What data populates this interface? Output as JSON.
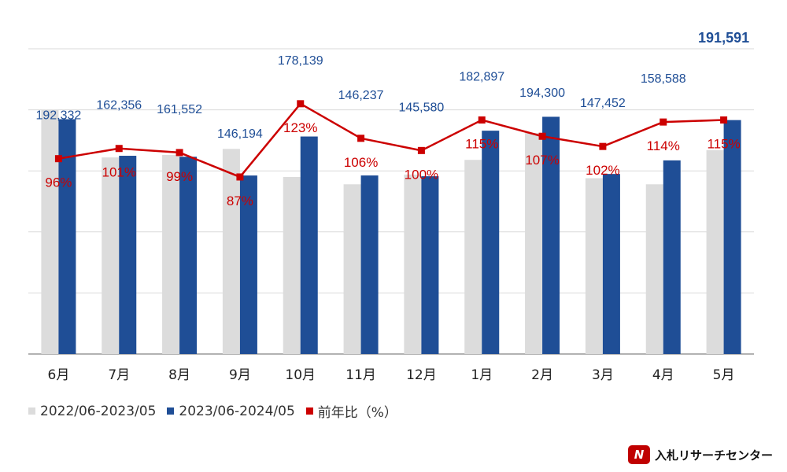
{
  "chart_data": {
    "type": "bar",
    "categories": [
      "6月",
      "7月",
      "8月",
      "9月",
      "10月",
      "11月",
      "12月",
      "1月",
      "2月",
      "3月",
      "4月",
      "5月"
    ],
    "series": [
      {
        "name": "2022/06-2023/05",
        "kind": "bar",
        "color": "#dcdcdc",
        "values": [
          200000,
          161000,
          163000,
          168000,
          145000,
          139000,
          147000,
          159000,
          181000,
          144000,
          139000,
          167000
        ]
      },
      {
        "name": "2023/06-2024/05",
        "kind": "bar",
        "color": "#1f4e96",
        "values": [
          192332,
          162356,
          161552,
          146194,
          178139,
          146237,
          145580,
          182897,
          194300,
          147452,
          158588,
          191591
        ],
        "labels": [
          "192,332",
          "162,356",
          "161,552",
          "146,194",
          "178,139",
          "146,237",
          "145,580",
          "182,897",
          "194,300",
          "147,452",
          "158,588",
          "191,591"
        ]
      },
      {
        "name": "前年比（%）",
        "kind": "line",
        "color": "#cc0000",
        "values": [
          96,
          101,
          99,
          87,
          123,
          106,
          100,
          115,
          107,
          102,
          114,
          115
        ],
        "labels": [
          "96%",
          "101%",
          "99%",
          "87%",
          "123%",
          "106%",
          "100%",
          "115%",
          "107%",
          "102%",
          "114%",
          "115%"
        ]
      }
    ],
    "ylim": [
      0,
      250000
    ],
    "y2lim": [
      0,
      150
    ],
    "grid": true,
    "legend": "bottom-left",
    "title": "",
    "xlabel": "",
    "ylabel": ""
  },
  "legend": {
    "items": [
      {
        "label": "2022/06-2023/05",
        "color": "#dcdcdc"
      },
      {
        "label": "2023/06-2024/05",
        "color": "#1f4e96"
      },
      {
        "label": "前年比（%）",
        "color": "#cc0000"
      }
    ]
  },
  "brand": {
    "logo_text": "N",
    "name": "入札リサーチセンター"
  }
}
